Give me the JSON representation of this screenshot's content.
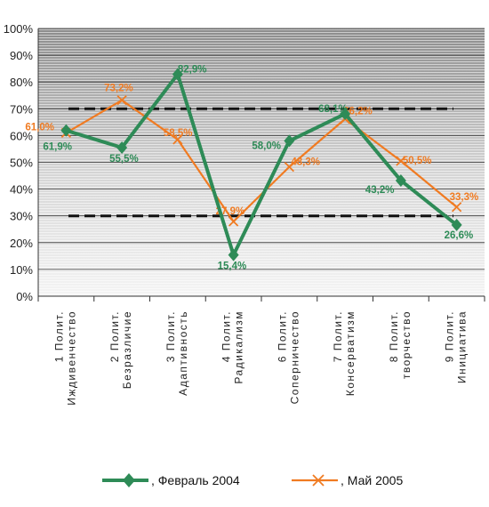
{
  "chart_data": {
    "type": "line",
    "categories": [
      [
        "1 Полит.",
        "Иждивенчество"
      ],
      [
        "2 Полит.",
        "Безразличие"
      ],
      [
        "3 Полит.",
        "Адаптивность"
      ],
      [
        "4 Полит.",
        "Радикализм"
      ],
      [
        "6 Полит.",
        "Соперничество"
      ],
      [
        "7 Полит.",
        "Консерватизм"
      ],
      [
        "8 Полит.",
        "творчество"
      ],
      [
        "9 Полит.",
        "Инициатива"
      ]
    ],
    "series": [
      {
        "name": ", Февраль 2004",
        "color": "#2e8b57",
        "marker": "diamond",
        "values": [
          61.9,
          55.5,
          82.9,
          15.4,
          58.0,
          68.1,
          43.2,
          26.6
        ],
        "labels": [
          "61,9%",
          "55,5%",
          "82,9%",
          "15,4%",
          "58,0%",
          "68,1%",
          "43,2%",
          "26,6%"
        ]
      },
      {
        "name": ", Май 2005",
        "color": "#f07b22",
        "marker": "x",
        "values": [
          61.0,
          73.2,
          58.5,
          27.9,
          48.3,
          66.2,
          50.5,
          33.3
        ],
        "labels": [
          "61,0%",
          "73,2%",
          "58,5%",
          "27,9%",
          "48,3%",
          "66,2%",
          "50,5%",
          "33,3%"
        ]
      }
    ],
    "reference_lines": [
      70,
      30
    ],
    "ylim": [
      0,
      100
    ],
    "yticks": [
      "0%",
      "10%",
      "20%",
      "30%",
      "40%",
      "50%",
      "60%",
      "70%",
      "80%",
      "90%",
      "100%"
    ],
    "grid": true,
    "legend_position": "bottom",
    "title": "",
    "xlabel": "",
    "ylabel": ""
  }
}
